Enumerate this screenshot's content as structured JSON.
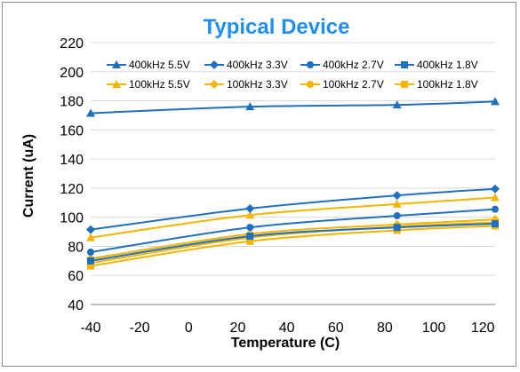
{
  "chart_data": {
    "type": "line",
    "title": "Typical Device",
    "title_color": "#1f8ef1",
    "xlabel": "Temperature (C)",
    "ylabel": "Current (uA)",
    "xlim": [
      -40,
      125
    ],
    "ylim": [
      40,
      220
    ],
    "x_ticks": [
      -40,
      -20,
      0,
      20,
      40,
      60,
      80,
      100,
      120
    ],
    "y_ticks": [
      40,
      60,
      80,
      100,
      120,
      140,
      160,
      180,
      200,
      220
    ],
    "grid": "horizontal",
    "legend_position": "top",
    "x": [
      -40,
      25,
      85,
      125
    ],
    "series": [
      {
        "name": "400kHz 5.5V",
        "color": "#1f6fbf",
        "marker": "triangle",
        "values": [
          171.5,
          176.0,
          177.2,
          179.5
        ]
      },
      {
        "name": "400kHz 3.3V",
        "color": "#1f6fbf",
        "marker": "diamond",
        "values": [
          91.5,
          106.0,
          115.0,
          119.5
        ]
      },
      {
        "name": "400kHz 2.7V",
        "color": "#1f6fbf",
        "marker": "circle",
        "values": [
          76.0,
          93.0,
          101.0,
          105.5
        ]
      },
      {
        "name": "400kHz 1.8V",
        "color": "#1f6fbf",
        "marker": "square",
        "values": [
          70.0,
          87.0,
          93.0,
          95.5
        ]
      },
      {
        "name": "100kHz 5.5V",
        "color": "#f5b400",
        "marker": "triangle",
        "values": [
          86.0,
          101.5,
          109.0,
          113.5
        ]
      },
      {
        "name": "100kHz 3.3V",
        "color": "#f5b400",
        "marker": "diamond",
        "values": [
          71.5,
          88.5,
          95.0,
          98.5
        ]
      },
      {
        "name": "100kHz 2.7V",
        "color": "#f5b400",
        "marker": "circle",
        "values": [
          68.5,
          86.0,
          93.5,
          96.5
        ]
      },
      {
        "name": "100kHz 1.8V",
        "color": "#f5b400",
        "marker": "square",
        "values": [
          66.5,
          83.5,
          91.0,
          94.0
        ]
      }
    ]
  }
}
